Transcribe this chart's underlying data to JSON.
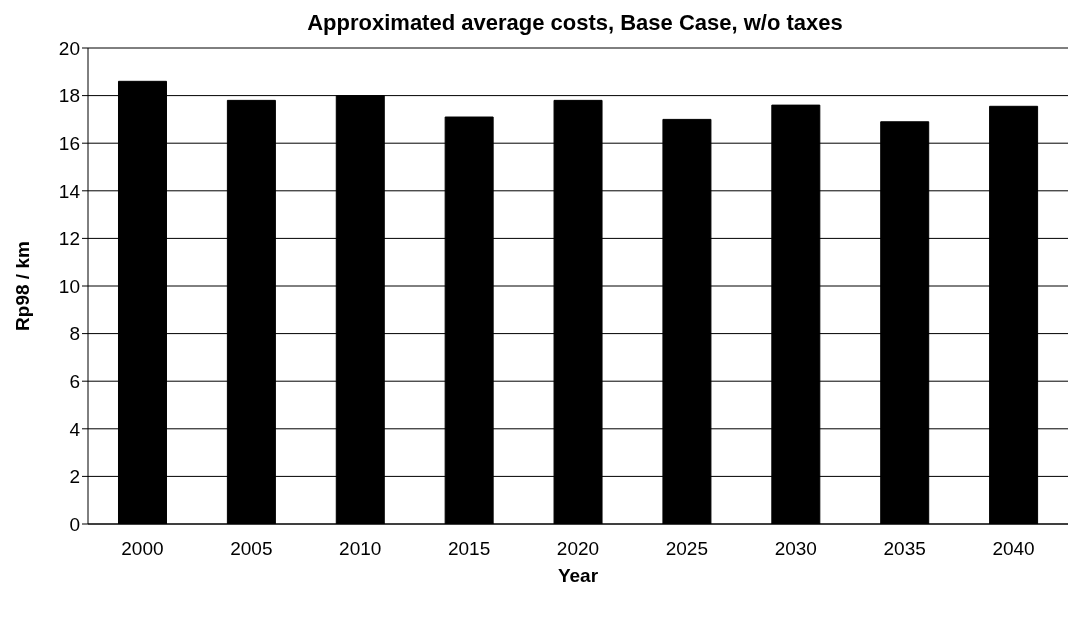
{
  "chart_data": {
    "type": "bar",
    "title": "Approximated average costs, Base Case, w/o taxes",
    "xlabel": "Year",
    "ylabel": "Rp98 / km",
    "categories": [
      "2000",
      "2005",
      "2010",
      "2015",
      "2020",
      "2025",
      "2030",
      "2035",
      "2040"
    ],
    "values": [
      18.6,
      17.8,
      18.0,
      17.1,
      17.8,
      17.0,
      17.6,
      16.9,
      17.55
    ],
    "color": "#000000",
    "ylim": [
      0,
      20
    ],
    "yticks": [
      0,
      2,
      4,
      6,
      8,
      10,
      12,
      14,
      16,
      18,
      20
    ],
    "grid": "y"
  }
}
